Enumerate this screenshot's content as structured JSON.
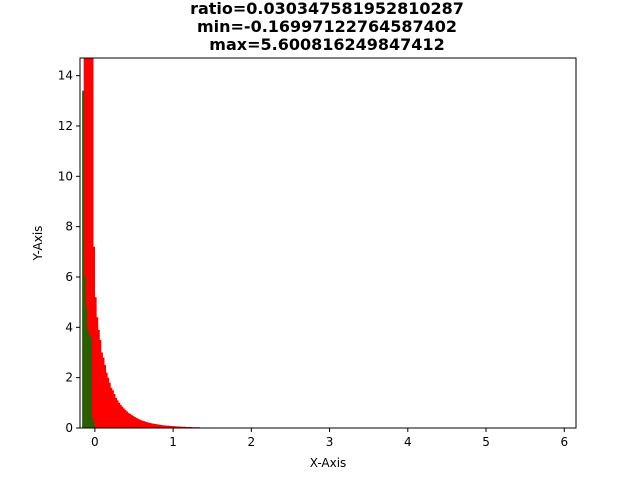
{
  "chart_data": {
    "type": "bar",
    "title_lines": [
      "ratio=0.030347581952810287",
      "min=-0.16997122764587402",
      "max=5.600816249847412"
    ],
    "xlabel": "X-Axis",
    "ylabel": "Y-Axis",
    "xlim": [
      -0.19,
      6.15
    ],
    "ylim": [
      0,
      14.7
    ],
    "x_ticks": [
      0,
      1,
      2,
      3,
      4,
      5,
      6
    ],
    "y_ticks": [
      0,
      2,
      4,
      6,
      8,
      10,
      12,
      14
    ],
    "grid": false,
    "legend": "none",
    "series": [
      {
        "color": "#ff0000",
        "x": [
          -0.13,
          -0.11,
          -0.09,
          -0.07,
          -0.05,
          -0.03,
          -0.01,
          0.01,
          0.03,
          0.05,
          0.07,
          0.09,
          0.11,
          0.13,
          0.15,
          0.17,
          0.19,
          0.21,
          0.23,
          0.25,
          0.27,
          0.29,
          0.31,
          0.33,
          0.35,
          0.37,
          0.39,
          0.41,
          0.43,
          0.45,
          0.47,
          0.49,
          0.51,
          0.53,
          0.55,
          0.57,
          0.59,
          0.61,
          0.63,
          0.65,
          0.67,
          0.69,
          0.71,
          0.73,
          0.75,
          0.77,
          0.79,
          0.81,
          0.83,
          0.85,
          0.87,
          0.89,
          0.91,
          0.93,
          0.95,
          0.97,
          0.99,
          1.01,
          1.03,
          1.05,
          1.07,
          1.09,
          1.11,
          1.13,
          1.15,
          1.17,
          1.19,
          1.21,
          1.23,
          1.25,
          1.27,
          1.29,
          1.31,
          1.33,
          1.35,
          1.37,
          1.39,
          1.41,
          1.43
        ],
        "values": [
          14.7,
          14.7,
          14.7,
          14.7,
          14.7,
          14.7,
          7.2,
          5.2,
          4.4,
          3.9,
          3.5,
          3.0,
          2.8,
          2.5,
          2.2,
          2.0,
          1.8,
          1.6,
          1.5,
          1.35,
          1.2,
          1.1,
          1.0,
          0.92,
          0.85,
          0.78,
          0.72,
          0.66,
          0.6,
          0.56,
          0.52,
          0.48,
          0.44,
          0.4,
          0.37,
          0.34,
          0.31,
          0.29,
          0.27,
          0.25,
          0.23,
          0.21,
          0.2,
          0.18,
          0.17,
          0.16,
          0.15,
          0.14,
          0.13,
          0.12,
          0.11,
          0.1,
          0.1,
          0.09,
          0.09,
          0.08,
          0.08,
          0.07,
          0.07,
          0.06,
          0.06,
          0.06,
          0.05,
          0.05,
          0.05,
          0.04,
          0.04,
          0.04,
          0.04,
          0.03,
          0.03,
          0.03,
          0.03,
          0.03,
          0.02,
          0.02,
          0.02,
          0.02,
          0.02
        ]
      },
      {
        "color": "#2a5e00",
        "x": [
          -0.15,
          -0.13,
          -0.11,
          -0.09,
          -0.07,
          -0.05,
          -0.03,
          -0.01
        ],
        "values": [
          13.4,
          6.0,
          4.8,
          3.9,
          3.7,
          3.6,
          0.4,
          0.2
        ]
      }
    ]
  }
}
